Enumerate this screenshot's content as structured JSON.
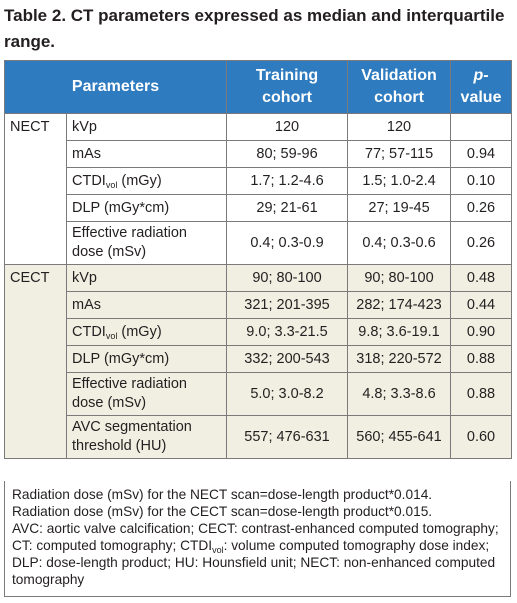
{
  "caption": "Table 2. CT parameters expressed as median and interquartile range.",
  "table": {
    "headers": [
      "Parameters",
      "Training cohort",
      "Validation cohort",
      "p",
      "-value"
    ],
    "groups": [
      {
        "name": "NECT",
        "rows": [
          {
            "param": "kVp",
            "training": "120",
            "validation": "120",
            "p": ""
          },
          {
            "param": "mAs",
            "training": "80; 59-96",
            "validation": "77; 57-115",
            "p": "0.94"
          },
          {
            "param_pre": "CTDI",
            "param_sub": "vol",
            "param_post": " (mGy)",
            "training": "1.7; 1.2-4.6",
            "validation": "1.5; 1.0-2.4",
            "p": "0.10"
          },
          {
            "param": "DLP (mGy*cm)",
            "training": "29; 21-61",
            "validation": "27; 19-45",
            "p": "0.26"
          },
          {
            "param": "Effective radiation dose (mSv)",
            "training": "0.4; 0.3-0.9",
            "validation": "0.4; 0.3-0.6",
            "p": "0.26"
          }
        ]
      },
      {
        "name": "CECT",
        "rows": [
          {
            "param": "kVp",
            "training": "90; 80-100",
            "validation": "90; 80-100",
            "p": "0.48"
          },
          {
            "param": "mAs",
            "training": "321; 201-395",
            "validation": "282; 174-423",
            "p": "0.44"
          },
          {
            "param_pre": "CTDI",
            "param_sub": "vol",
            "param_post": " (mGy)",
            "training": "9.0; 3.3-21.5",
            "validation": "9.8; 3.6-19.1",
            "p": "0.90"
          },
          {
            "param": "DLP (mGy*cm)",
            "training": "332; 200-543",
            "validation": "318; 220-572",
            "p": "0.88"
          },
          {
            "param": "Effective radiation dose (mSv)",
            "training": "5.0; 3.0-8.2",
            "validation": "4.8; 3.3-8.6",
            "p": "0.88"
          },
          {
            "param": "AVC segmentation threshold (HU)",
            "training": "557; 476-631",
            "validation": "560; 455-641",
            "p": "0.60"
          }
        ]
      }
    ]
  },
  "footnote": {
    "line1": "Radiation dose (mSv) for the NECT scan=dose-length product*0.014.",
    "line2": "Radiation dose (mSv) for the CECT scan=dose-length product*0.015.",
    "abbrev_pre": "AVC: aortic valve calcification; CECT: contrast-enhanced computed tomography; CT: computed tomography; CTDI",
    "abbrev_sub": "vol",
    "abbrev_post": ": volume computed tomography dose index; DLP: dose-length product; HU: Hounsfield unit; NECT: non-enhanced computed tomography"
  }
}
